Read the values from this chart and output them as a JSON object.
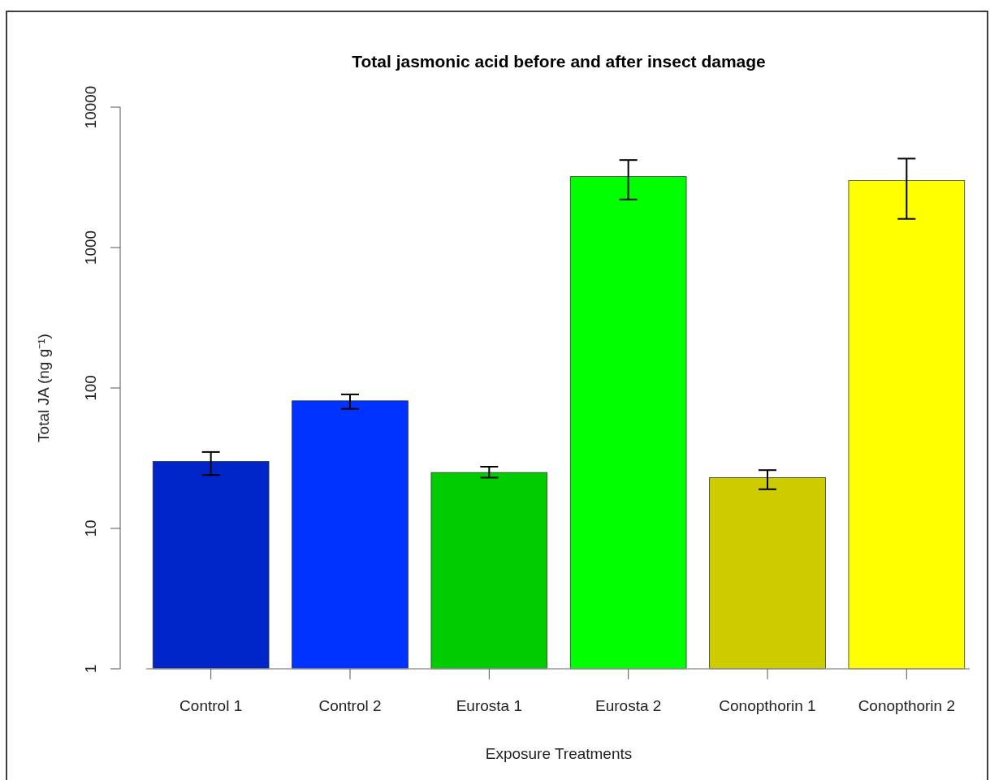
{
  "chart_data": {
    "type": "bar",
    "title": "Total jasmonic acid before and after insect damage",
    "xlabel": "Exposure Treatments",
    "ylabel": "Total JA (ng g⁻¹)",
    "categories": [
      "Control 1",
      "Control 2",
      "Eurosta 1",
      "Eurosta 2",
      "Conopthorin 1",
      "Conopthorin 2"
    ],
    "values": [
      30,
      81,
      25,
      3200,
      23,
      3000
    ],
    "colors": [
      "#0026ca",
      "#0033ff",
      "#00cc00",
      "#00ff00",
      "#cccc00",
      "#ffff00"
    ],
    "errors": [
      [
        24,
        35
      ],
      [
        71,
        90
      ],
      [
        23,
        27.5
      ],
      [
        2200,
        4200
      ],
      [
        19,
        26
      ],
      [
        1600,
        4300
      ]
    ],
    "log": true,
    "ylim": [
      1,
      10000
    ],
    "yticks": [
      1,
      10,
      100,
      1000,
      10000
    ]
  }
}
